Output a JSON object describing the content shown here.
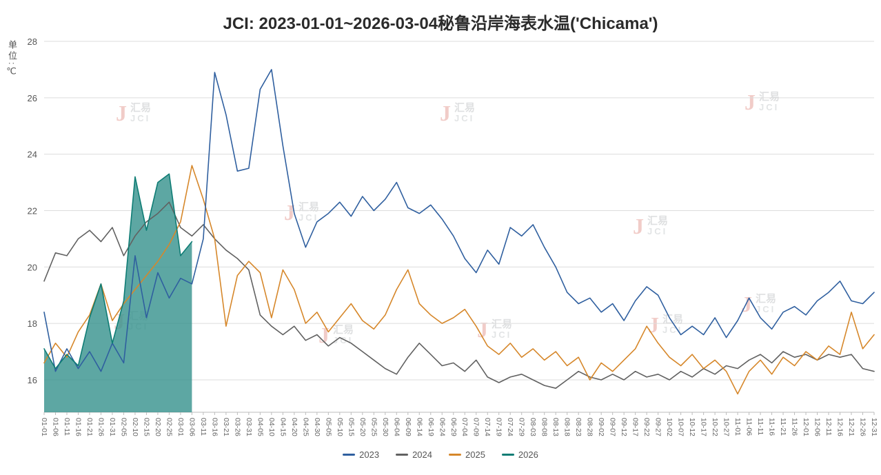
{
  "title": "JCI: 2023-01-01~2026-03-04秘鲁沿岸海表水温('Chicama')",
  "y_axis_unit": "单位:℃",
  "watermark": {
    "logo_glyph": "J",
    "text_cn": "汇易",
    "text_en": "JCI"
  },
  "legend": [
    {
      "label": "2023",
      "color": "#2f5f9f"
    },
    {
      "label": "2024",
      "color": "#616161"
    },
    {
      "label": "2025",
      "color": "#d6872a"
    },
    {
      "label": "2026",
      "color": "#0e7c74"
    }
  ],
  "chart_data": {
    "type": "line",
    "title": "JCI: 2023-01-01~2026-03-04秘鲁沿岸海表水温('Chicama')",
    "ylabel": "单位:℃",
    "ylim": [
      14.85,
      28
    ],
    "yticks": [
      16,
      18,
      20,
      22,
      24,
      26,
      28
    ],
    "grid": true,
    "legend_position": "bottom",
    "x_label_rotation": 90,
    "sampling": "5-day estimates read from daily curves",
    "x": [
      "01-01",
      "01-06",
      "01-11",
      "01-16",
      "01-21",
      "01-26",
      "01-31",
      "02-05",
      "02-10",
      "02-15",
      "02-20",
      "02-25",
      "03-01",
      "03-06",
      "03-11",
      "03-16",
      "03-21",
      "03-26",
      "03-31",
      "04-05",
      "04-10",
      "04-15",
      "04-20",
      "04-25",
      "04-30",
      "05-05",
      "05-10",
      "05-15",
      "05-20",
      "05-25",
      "05-30",
      "06-04",
      "06-09",
      "06-14",
      "06-19",
      "06-24",
      "06-29",
      "07-04",
      "07-09",
      "07-14",
      "07-19",
      "07-24",
      "07-29",
      "08-03",
      "08-08",
      "08-13",
      "08-18",
      "08-23",
      "08-28",
      "09-02",
      "09-07",
      "09-12",
      "09-17",
      "09-22",
      "09-27",
      "10-02",
      "10-07",
      "10-12",
      "10-17",
      "10-22",
      "10-27",
      "11-01",
      "11-06",
      "11-11",
      "11-16",
      "11-21",
      "11-26",
      "12-01",
      "12-06",
      "12-11",
      "12-16",
      "12-21",
      "12-26",
      "12-31"
    ],
    "series": [
      {
        "name": "2023",
        "color": "#2f5f9f",
        "values": [
          18.4,
          16.3,
          17.1,
          16.4,
          17.0,
          16.3,
          17.3,
          16.6,
          20.4,
          18.2,
          19.8,
          18.9,
          19.6,
          19.4,
          21.0,
          26.9,
          25.4,
          23.4,
          23.5,
          26.3,
          27.0,
          24.3,
          21.9,
          20.7,
          21.6,
          21.9,
          22.3,
          21.8,
          22.5,
          22.0,
          22.4,
          23.0,
          22.1,
          21.9,
          22.2,
          21.7,
          21.1,
          20.3,
          19.8,
          20.6,
          20.1,
          21.4,
          21.1,
          21.5,
          20.7,
          20.0,
          19.1,
          18.7,
          18.9,
          18.4,
          18.7,
          18.1,
          18.8,
          19.3,
          19.0,
          18.2,
          17.6,
          17.9,
          17.6,
          18.2,
          17.5,
          18.1,
          18.9,
          18.2,
          17.8,
          18.4,
          18.6,
          18.3,
          18.8,
          19.1,
          19.5,
          18.8,
          18.7,
          19.1
        ]
      },
      {
        "name": "2024",
        "color": "#616161",
        "values": [
          19.5,
          20.5,
          20.4,
          21.0,
          21.3,
          20.9,
          21.4,
          20.4,
          21.1,
          21.6,
          21.9,
          22.3,
          21.4,
          21.1,
          21.5,
          21.0,
          20.6,
          20.3,
          19.9,
          18.3,
          17.9,
          17.6,
          17.9,
          17.4,
          17.6,
          17.2,
          17.5,
          17.3,
          17.0,
          16.7,
          16.4,
          16.2,
          16.8,
          17.3,
          16.9,
          16.5,
          16.6,
          16.3,
          16.7,
          16.1,
          15.9,
          16.1,
          16.2,
          16.0,
          15.8,
          15.7,
          16.0,
          16.3,
          16.1,
          16.0,
          16.2,
          16.0,
          16.3,
          16.1,
          16.2,
          16.0,
          16.3,
          16.1,
          16.4,
          16.2,
          16.5,
          16.4,
          16.7,
          16.9,
          16.6,
          17.0,
          16.8,
          16.9,
          16.7,
          16.9,
          16.8,
          16.9,
          16.4,
          16.3
        ]
      },
      {
        "name": "2025",
        "color": "#d6872a",
        "values": [
          16.6,
          17.3,
          16.8,
          17.7,
          18.3,
          19.4,
          18.1,
          18.7,
          19.2,
          19.7,
          20.2,
          20.8,
          21.6,
          23.6,
          22.4,
          21.0,
          17.9,
          19.7,
          20.2,
          19.8,
          18.2,
          19.9,
          19.2,
          18.0,
          18.4,
          17.7,
          18.2,
          18.7,
          18.1,
          17.8,
          18.3,
          19.2,
          19.9,
          18.7,
          18.3,
          18.0,
          18.2,
          18.5,
          17.9,
          17.2,
          16.9,
          17.3,
          16.8,
          17.1,
          16.7,
          17.0,
          16.5,
          16.8,
          16.0,
          16.6,
          16.3,
          16.7,
          17.1,
          17.9,
          17.3,
          16.8,
          16.5,
          16.9,
          16.4,
          16.7,
          16.3,
          15.5,
          16.3,
          16.7,
          16.2,
          16.8,
          16.5,
          17.0,
          16.7,
          17.2,
          16.9,
          18.4,
          17.1,
          17.6
        ]
      },
      {
        "name": "2026",
        "color": "#0e7c74",
        "area": true,
        "fill_color": "#35918c",
        "fill_opacity": 0.8,
        "values": [
          17.1,
          16.4,
          16.9,
          16.5,
          18.2,
          19.4,
          17.3,
          18.8,
          23.2,
          21.3,
          23.0,
          23.3,
          20.4,
          20.9
        ]
      }
    ]
  }
}
